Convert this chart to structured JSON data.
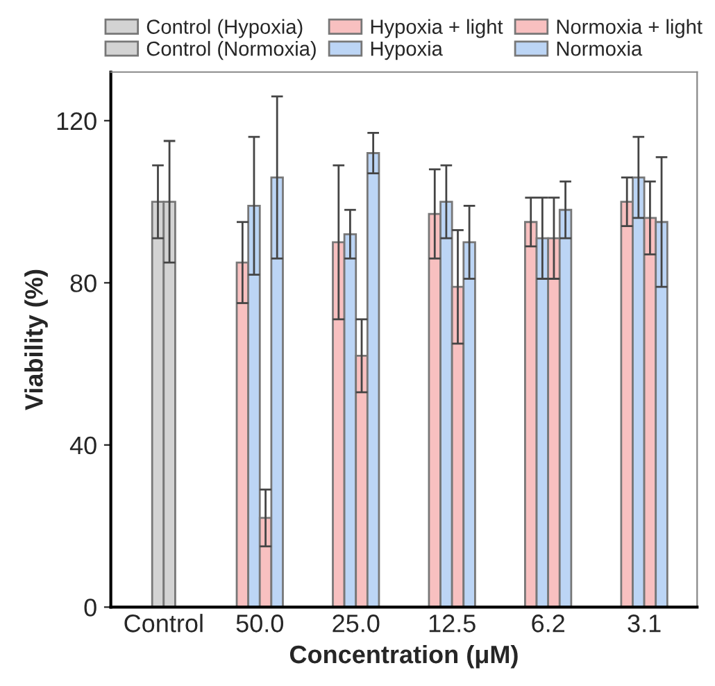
{
  "chart_data": {
    "type": "bar",
    "xlabel": "Concentration (μM)",
    "ylabel": "Viability (%)",
    "categories": [
      "Control",
      "50.0",
      "25.0",
      "12.5",
      "6.2",
      "3.1"
    ],
    "series": [
      {
        "name": "Control (Hypoxia)",
        "color": "#d3d3d3",
        "values": [
          100,
          null,
          null,
          null,
          null,
          null
        ],
        "errors": [
          9,
          null,
          null,
          null,
          null,
          null
        ]
      },
      {
        "name": "Control (Normoxia)",
        "color": "#d3d3d3",
        "values": [
          100,
          null,
          null,
          null,
          null,
          null
        ],
        "errors": [
          15,
          null,
          null,
          null,
          null,
          null
        ]
      },
      {
        "name": "Hypoxia + light",
        "color": "#f8c0c0",
        "values": [
          null,
          85,
          90,
          97,
          95,
          100
        ],
        "errors": [
          null,
          10,
          19,
          11,
          6,
          6
        ]
      },
      {
        "name": "Hypoxia",
        "color": "#bcd5f5",
        "values": [
          null,
          99,
          92,
          100,
          91,
          106
        ],
        "errors": [
          null,
          17,
          6,
          9,
          10,
          10
        ]
      },
      {
        "name": "Normoxia + light",
        "color": "#f8c0c0",
        "values": [
          null,
          22,
          62,
          79,
          91,
          96
        ],
        "errors": [
          null,
          7,
          9,
          14,
          10,
          9
        ]
      },
      {
        "name": "Normoxia",
        "color": "#bcd5f5",
        "values": [
          null,
          106,
          112,
          90,
          98,
          95
        ],
        "errors": [
          null,
          20,
          5,
          9,
          7,
          16
        ]
      }
    ],
    "ylim": [
      0,
      132
    ],
    "yticks": [
      0,
      40,
      80,
      120
    ],
    "grid": false,
    "legend": "top"
  }
}
